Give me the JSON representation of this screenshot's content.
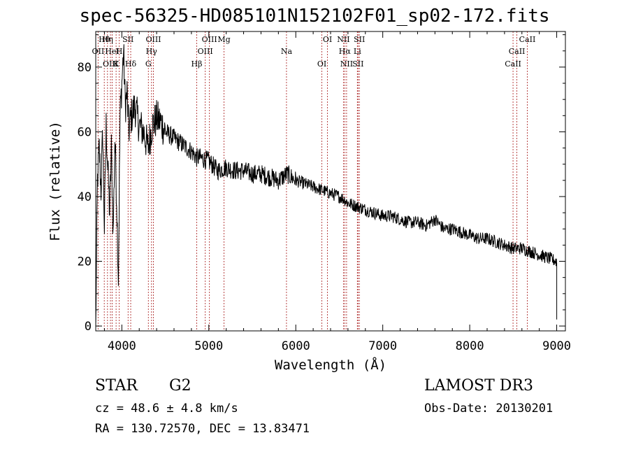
{
  "chart_data": {
    "type": "line",
    "title": "spec-56325-HD085101N152102F01_sp02-172.fits",
    "xlabel": "Wavelength (Å)",
    "ylabel": "Flux (relative)",
    "xlim": [
      3700,
      9100
    ],
    "ylim": [
      -1.5,
      91
    ],
    "x_ticks": [
      4000,
      5000,
      6000,
      7000,
      8000,
      9000
    ],
    "y_ticks": [
      0,
      20,
      40,
      60,
      80
    ],
    "grid": false,
    "series": [
      {
        "name": "spectrum",
        "x": [
          3700,
          3720,
          3740,
          3760,
          3780,
          3800,
          3820,
          3840,
          3860,
          3880,
          3900,
          3920,
          3940,
          3960,
          3980,
          4000,
          4020,
          4040,
          4060,
          4080,
          4100,
          4150,
          4200,
          4250,
          4300,
          4350,
          4400,
          4450,
          4500,
          4600,
          4700,
          4800,
          4860,
          4900,
          5000,
          5100,
          5200,
          5300,
          5400,
          5500,
          5600,
          5700,
          5800,
          5900,
          6000,
          6100,
          6200,
          6300,
          6400,
          6500,
          6563,
          6600,
          6700,
          6800,
          6900,
          7000,
          7100,
          7200,
          7300,
          7400,
          7500,
          7600,
          7700,
          7800,
          7900,
          8000,
          8100,
          8200,
          8300,
          8400,
          8500,
          8600,
          8700,
          8800,
          8900,
          9000
        ],
        "y": [
          0,
          45,
          55,
          42,
          60,
          30,
          62,
          48,
          35,
          55,
          28,
          58,
          40,
          15,
          65,
          75,
          85,
          68,
          72,
          60,
          64,
          68,
          62,
          60,
          55,
          62,
          64,
          63,
          60,
          58,
          56,
          54,
          52,
          52,
          51,
          48,
          49,
          48,
          48,
          47,
          47,
          46,
          45,
          47,
          45,
          44,
          43,
          42,
          41,
          40,
          39,
          38,
          37,
          36,
          35,
          34,
          34,
          33,
          32,
          32,
          31,
          33,
          30,
          30,
          29,
          28,
          27,
          27,
          26,
          25,
          24,
          24,
          23,
          22,
          21,
          20
        ]
      }
    ],
    "lines": [
      {
        "label": "Hθ",
        "wavelength": 3798
      },
      {
        "label": "OII",
        "wavelength": 3727
      },
      {
        "label": "OIII",
        "wavelength": 3869
      },
      {
        "label": "Hη",
        "wavelength": 3835
      },
      {
        "label": "HeI",
        "wavelength": 3889
      },
      {
        "label": "K",
        "wavelength": 3934
      },
      {
        "label": "SII",
        "wavelength": 4072
      },
      {
        "label": "H",
        "wavelength": 3970
      },
      {
        "label": "Hδ",
        "wavelength": 4102
      },
      {
        "label": "OIII",
        "wavelength": 4363
      },
      {
        "label": "Hγ",
        "wavelength": 4341
      },
      {
        "label": "G",
        "wavelength": 4305
      },
      {
        "label": "OIII",
        "wavelength": 5007
      },
      {
        "label": "OIII",
        "wavelength": 4959
      },
      {
        "label": "Hβ",
        "wavelength": 4861
      },
      {
        "label": "Mg",
        "wavelength": 5175
      },
      {
        "label": "Na",
        "wavelength": 5893
      },
      {
        "label": "OI",
        "wavelength": 6300
      },
      {
        "label": "OI",
        "wavelength": 6364
      },
      {
        "label": "Hα",
        "wavelength": 6563
      },
      {
        "label": "SII",
        "wavelength": 6716
      },
      {
        "label": "NII",
        "wavelength": 6548
      },
      {
        "label": "Li",
        "wavelength": 6708
      },
      {
        "label": "NII",
        "wavelength": 6584
      },
      {
        "label": "SII",
        "wavelength": 6731
      },
      {
        "label": "CaII",
        "wavelength": 8542
      },
      {
        "label": "CaII",
        "wavelength": 8498
      },
      {
        "label": "CaII",
        "wavelength": 8662
      }
    ]
  },
  "footer": {
    "class": "STAR",
    "subclass": "G2",
    "survey": "LAMOST DR3",
    "cz": "cz = 48.6 ± 4.8 km/s",
    "obs_date": "Obs-Date: 20130201",
    "coords": "RA = 130.72570, DEC =  13.83471"
  },
  "colors": {
    "spectrum": "#000000",
    "lines": "#b03030",
    "axes": "#000000"
  }
}
